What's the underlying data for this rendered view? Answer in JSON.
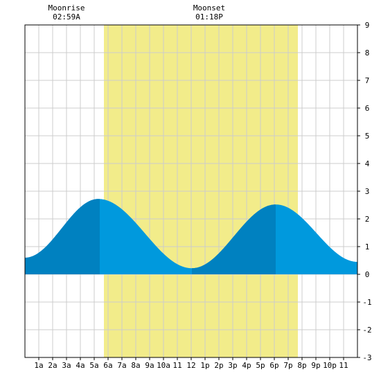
{
  "chart_data": {
    "type": "area",
    "title": "",
    "xlabel": "",
    "ylabel": "",
    "xlim": [
      0,
      24
    ],
    "ylim": [
      -3,
      9
    ],
    "grid": true,
    "x_ticks": [
      {
        "x": 1,
        "label": "1a"
      },
      {
        "x": 2,
        "label": "2a"
      },
      {
        "x": 3,
        "label": "3a"
      },
      {
        "x": 4,
        "label": "4a"
      },
      {
        "x": 5,
        "label": "5a"
      },
      {
        "x": 6,
        "label": "6a"
      },
      {
        "x": 7,
        "label": "7a"
      },
      {
        "x": 8,
        "label": "8a"
      },
      {
        "x": 9,
        "label": "9a"
      },
      {
        "x": 10,
        "label": "10a"
      },
      {
        "x": 11,
        "label": "11"
      },
      {
        "x": 12,
        "label": "12"
      },
      {
        "x": 13,
        "label": "1p"
      },
      {
        "x": 14,
        "label": "2p"
      },
      {
        "x": 15,
        "label": "3p"
      },
      {
        "x": 16,
        "label": "4p"
      },
      {
        "x": 17,
        "label": "5p"
      },
      {
        "x": 18,
        "label": "6p"
      },
      {
        "x": 19,
        "label": "7p"
      },
      {
        "x": 20,
        "label": "8p"
      },
      {
        "x": 21,
        "label": "9p"
      },
      {
        "x": 22,
        "label": "10p"
      },
      {
        "x": 23,
        "label": "11"
      }
    ],
    "y_ticks": [
      "-3",
      "-2",
      "-1",
      "0",
      "1",
      "2",
      "3",
      "4",
      "5",
      "6",
      "7",
      "8",
      "9"
    ],
    "daylight": {
      "start": 5.7,
      "end": 19.7
    },
    "tide_extrema": [
      {
        "x": 0.0,
        "y": 0.6
      },
      {
        "x": 5.3,
        "y": 2.72
      },
      {
        "x": 12.05,
        "y": 0.22
      },
      {
        "x": 18.1,
        "y": 2.52
      },
      {
        "x": 24.0,
        "y": 0.45
      }
    ],
    "highlight_bands": [
      {
        "start": 0.0,
        "end": 5.4
      },
      {
        "start": 12.05,
        "end": 18.1
      }
    ],
    "annotations": [
      {
        "x": 3.0,
        "title": "Moonrise",
        "time": "02:59A"
      },
      {
        "x": 13.3,
        "title": "Moonset",
        "time": "01:18P"
      }
    ],
    "colors": {
      "background": "#ffffff",
      "daylight": "#f2ec8a",
      "tide": "#0099dd",
      "tide_dark": "#0081c0",
      "grid": "#cccccc",
      "axis": "#000000"
    }
  }
}
